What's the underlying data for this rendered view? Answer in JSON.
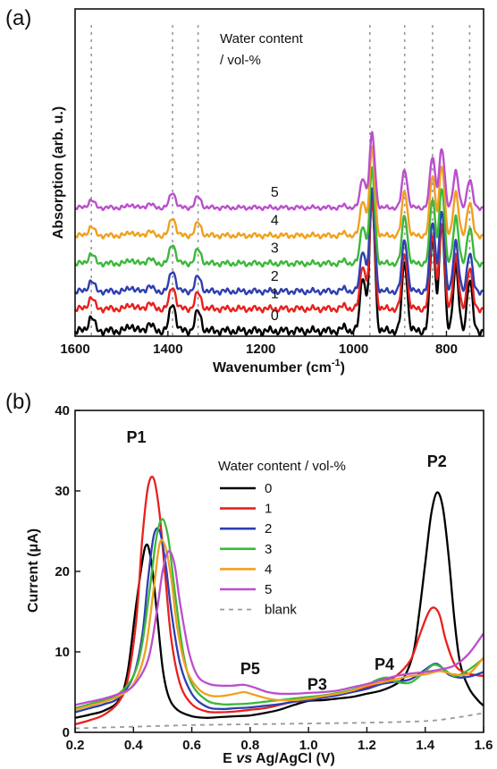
{
  "chart_data": [
    {
      "panel": "(a)",
      "type": "line",
      "xlabel": "Wavenumber (cm",
      "xlabel_sup": "-1",
      "xlabel_close": ")",
      "ylabel": "Absorption (arb. u.)",
      "xlim": [
        1600,
        720
      ],
      "x_reversed": true,
      "x_ticks": [
        "1600",
        "1400",
        "1200",
        "1000",
        "800"
      ],
      "x_tick_values": [
        1600,
        1400,
        1200,
        1000,
        800
      ],
      "y_ticks": false,
      "legend_title_1": "Water content",
      "legend_title_2": "/ vol-%",
      "reference_lines_cm1": [
        1565,
        1390,
        1335,
        965,
        890,
        830,
        750
      ],
      "base_peaks": [
        {
          "x": 1565,
          "height": 0.6
        },
        {
          "x": 1480,
          "height": 0.25
        },
        {
          "x": 1440,
          "height": 0.3
        },
        {
          "x": 1390,
          "height": 1.2
        },
        {
          "x": 1335,
          "height": 0.85
        },
        {
          "x": 1020,
          "height": 0.15
        },
        {
          "x": 980,
          "height": 2.4
        },
        {
          "x": 960,
          "height": 5.8
        },
        {
          "x": 890,
          "height": 3.0
        },
        {
          "x": 830,
          "height": 4.0
        },
        {
          "x": 810,
          "height": 4.6
        },
        {
          "x": 780,
          "height": 2.8
        },
        {
          "x": 750,
          "height": 2.2
        }
      ],
      "series": [
        {
          "name": "0",
          "color": "#000000",
          "offset": 0.0,
          "scale": 1.0
        },
        {
          "name": "1",
          "color": "#e8211e",
          "offset": 0.95,
          "scale": 0.8
        },
        {
          "name": "2",
          "color": "#2e3fb0",
          "offset": 1.7,
          "scale": 0.75
        },
        {
          "name": "3",
          "color": "#3cb83a",
          "offset": 2.9,
          "scale": 0.7
        },
        {
          "name": "4",
          "color": "#f0a020",
          "offset": 4.1,
          "scale": 0.65
        },
        {
          "name": "5",
          "color": "#bb4fcc",
          "offset": 5.3,
          "scale": 0.55
        }
      ]
    },
    {
      "panel": "(b)",
      "type": "line",
      "xlabel_prefix": "E ",
      "xlabel_italic": "vs",
      "xlabel_suffix": " Ag/AgCl (V)",
      "ylabel": "Current (",
      "ylabel_mu": "μ",
      "ylabel_close": "A)",
      "xlim": [
        0.2,
        1.6
      ],
      "ylim": [
        0,
        40
      ],
      "x_ticks": [
        "0.2",
        "0.4",
        "0.6",
        "0.8",
        "1.0",
        "1.2",
        "1.4",
        "1.6"
      ],
      "x_tick_values": [
        0.2,
        0.4,
        0.6,
        0.8,
        1.0,
        1.2,
        1.4,
        1.6
      ],
      "y_ticks": [
        "0",
        "10",
        "20",
        "30",
        "40"
      ],
      "y_tick_values": [
        0,
        10,
        20,
        30,
        40
      ],
      "legend_title": "Water content / vol-%",
      "legend_placement": "top-center",
      "peak_labels": [
        {
          "text": "P1",
          "x": 0.41,
          "y": 36
        },
        {
          "text": "P2",
          "x": 1.44,
          "y": 33
        },
        {
          "text": "P3",
          "x": 1.03,
          "y": 5.3
        },
        {
          "text": "P4",
          "x": 1.26,
          "y": 7.8
        },
        {
          "text": "P5",
          "x": 0.8,
          "y": 7.2
        }
      ],
      "series": [
        {
          "name": "0",
          "color": "#000000",
          "dash": false,
          "x": [
            0.2,
            0.25,
            0.3,
            0.35,
            0.38,
            0.41,
            0.44,
            0.46,
            0.48,
            0.5,
            0.52,
            0.55,
            0.6,
            0.65,
            0.7,
            0.75,
            0.8,
            0.85,
            0.9,
            0.95,
            1.0,
            1.05,
            1.1,
            1.15,
            1.2,
            1.25,
            1.3,
            1.33,
            1.36,
            1.38,
            1.4,
            1.42,
            1.44,
            1.46,
            1.48,
            1.5,
            1.52,
            1.55,
            1.58,
            1.6
          ],
          "y": [
            1.8,
            2.2,
            2.7,
            4.0,
            7.5,
            16.0,
            23.0,
            21.5,
            15.0,
            8.0,
            4.5,
            2.8,
            2.0,
            1.8,
            1.9,
            2.0,
            2.1,
            2.4,
            2.8,
            3.4,
            3.9,
            4.0,
            4.2,
            4.4,
            4.8,
            5.2,
            6.0,
            7.0,
            10.0,
            15.0,
            21.0,
            27.0,
            29.8,
            28.0,
            22.0,
            14.0,
            8.5,
            5.5,
            4.0,
            3.3
          ]
        },
        {
          "name": "1",
          "color": "#e8211e",
          "dash": false,
          "x": [
            0.2,
            0.25,
            0.3,
            0.35,
            0.38,
            0.41,
            0.43,
            0.45,
            0.47,
            0.49,
            0.51,
            0.53,
            0.56,
            0.6,
            0.65,
            0.7,
            0.75,
            0.8,
            0.85,
            0.9,
            0.95,
            1.0,
            1.05,
            1.1,
            1.15,
            1.2,
            1.25,
            1.3,
            1.35,
            1.38,
            1.41,
            1.43,
            1.45,
            1.47,
            1.5,
            1.53,
            1.56,
            1.6
          ],
          "y": [
            1.0,
            1.5,
            2.2,
            3.8,
            6.5,
            14.0,
            24.0,
            30.5,
            31.5,
            27.0,
            19.0,
            11.5,
            6.0,
            3.5,
            2.6,
            2.5,
            2.6,
            2.8,
            3.0,
            3.4,
            3.8,
            4.0,
            4.3,
            4.8,
            5.2,
            5.6,
            6.2,
            7.0,
            9.0,
            12.0,
            14.8,
            15.5,
            14.5,
            11.5,
            8.5,
            7.5,
            7.2,
            7.0
          ]
        },
        {
          "name": "2",
          "color": "#2e3fb0",
          "dash": false,
          "x": [
            0.2,
            0.25,
            0.3,
            0.35,
            0.4,
            0.43,
            0.45,
            0.47,
            0.49,
            0.51,
            0.53,
            0.56,
            0.6,
            0.65,
            0.7,
            0.75,
            0.8,
            0.85,
            0.9,
            0.95,
            1.0,
            1.05,
            1.1,
            1.15,
            1.2,
            1.25,
            1.3,
            1.35,
            1.4,
            1.43,
            1.45,
            1.48,
            1.52,
            1.56,
            1.6
          ],
          "y": [
            2.5,
            3.0,
            3.5,
            4.3,
            7.0,
            12.0,
            19.0,
            24.5,
            25.0,
            21.0,
            15.0,
            8.5,
            4.8,
            3.2,
            2.9,
            3.0,
            3.1,
            3.3,
            3.5,
            3.8,
            4.0,
            4.3,
            4.6,
            5.0,
            5.4,
            6.0,
            6.3,
            6.6,
            7.8,
            8.5,
            8.3,
            7.2,
            6.8,
            7.0,
            7.5
          ]
        },
        {
          "name": "3",
          "color": "#3cb83a",
          "dash": false,
          "x": [
            0.2,
            0.25,
            0.3,
            0.35,
            0.4,
            0.43,
            0.46,
            0.48,
            0.5,
            0.52,
            0.54,
            0.57,
            0.6,
            0.65,
            0.7,
            0.75,
            0.8,
            0.85,
            0.9,
            0.95,
            1.0,
            1.05,
            1.1,
            1.15,
            1.2,
            1.24,
            1.27,
            1.3,
            1.35,
            1.4,
            1.43,
            1.46,
            1.5,
            1.55,
            1.6
          ],
          "y": [
            3.0,
            3.5,
            4.0,
            4.8,
            7.0,
            11.0,
            19.0,
            24.5,
            26.5,
            24.0,
            18.0,
            10.0,
            6.0,
            4.0,
            3.5,
            3.5,
            3.6,
            3.8,
            4.0,
            4.2,
            4.4,
            4.6,
            4.9,
            5.3,
            5.9,
            6.6,
            6.8,
            6.3,
            6.2,
            7.6,
            8.4,
            8.0,
            7.0,
            7.8,
            9.2
          ]
        },
        {
          "name": "4",
          "color": "#f0a020",
          "dash": false,
          "x": [
            0.2,
            0.25,
            0.3,
            0.35,
            0.4,
            0.44,
            0.47,
            0.49,
            0.51,
            0.53,
            0.55,
            0.58,
            0.62,
            0.66,
            0.7,
            0.75,
            0.78,
            0.82,
            0.86,
            0.9,
            0.95,
            1.0,
            1.05,
            1.1,
            1.15,
            1.2,
            1.25,
            1.3,
            1.35,
            1.4,
            1.45,
            1.5,
            1.55,
            1.6
          ],
          "y": [
            2.8,
            3.3,
            3.8,
            4.5,
            6.0,
            10.0,
            18.0,
            23.5,
            23.0,
            19.0,
            13.0,
            8.0,
            5.5,
            4.6,
            4.5,
            4.8,
            5.0,
            4.6,
            4.2,
            4.0,
            4.0,
            4.2,
            4.5,
            4.8,
            5.2,
            5.8,
            6.2,
            6.6,
            7.0,
            7.2,
            7.6,
            7.2,
            7.3,
            9.3
          ]
        },
        {
          "name": "5",
          "color": "#bb4fcc",
          "dash": false,
          "x": [
            0.2,
            0.25,
            0.3,
            0.35,
            0.4,
            0.45,
            0.48,
            0.5,
            0.52,
            0.54,
            0.56,
            0.59,
            0.62,
            0.66,
            0.7,
            0.74,
            0.78,
            0.82,
            0.86,
            0.9,
            0.95,
            1.0,
            1.05,
            1.1,
            1.15,
            1.2,
            1.25,
            1.3,
            1.35,
            1.4,
            1.45,
            1.5,
            1.55,
            1.6
          ],
          "y": [
            3.4,
            3.8,
            4.2,
            4.8,
            5.8,
            9.0,
            15.0,
            20.0,
            22.5,
            21.0,
            16.0,
            10.0,
            7.0,
            6.0,
            5.8,
            5.8,
            5.9,
            5.5,
            5.0,
            4.8,
            4.8,
            4.9,
            5.0,
            5.2,
            5.6,
            6.0,
            6.5,
            7.0,
            7.3,
            7.5,
            7.8,
            8.3,
            9.8,
            12.3
          ]
        },
        {
          "name": "blank",
          "color": "#999999",
          "dash": true,
          "x": [
            0.2,
            0.4,
            0.6,
            0.8,
            1.0,
            1.2,
            1.4,
            1.5,
            1.6
          ],
          "y": [
            0.5,
            0.7,
            0.9,
            1.0,
            1.1,
            1.2,
            1.4,
            1.8,
            2.4
          ]
        }
      ]
    }
  ]
}
